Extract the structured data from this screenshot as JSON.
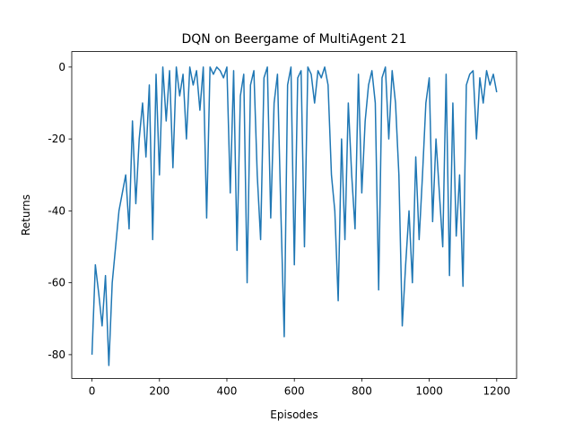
{
  "chart_data": {
    "type": "line",
    "title": "DQN on Beergame of MultiAgent 21",
    "x_label": "Episodes",
    "y_label": "Returns",
    "x": [
      0,
      10,
      20,
      30,
      40,
      50,
      60,
      70,
      80,
      90,
      100,
      110,
      120,
      130,
      140,
      150,
      160,
      170,
      180,
      190,
      200,
      210,
      220,
      230,
      240,
      250,
      260,
      270,
      280,
      290,
      300,
      310,
      320,
      330,
      340,
      350,
      360,
      370,
      380,
      390,
      400,
      410,
      420,
      430,
      440,
      450,
      460,
      470,
      480,
      490,
      500,
      510,
      520,
      530,
      540,
      550,
      560,
      570,
      580,
      590,
      600,
      610,
      620,
      630,
      640,
      650,
      660,
      670,
      680,
      690,
      700,
      710,
      720,
      730,
      740,
      750,
      760,
      770,
      780,
      790,
      800,
      810,
      820,
      830,
      840,
      850,
      860,
      870,
      880,
      890,
      900,
      910,
      920,
      930,
      940,
      950,
      960,
      970,
      980,
      990,
      1000,
      1010,
      1020,
      1030,
      1040,
      1050,
      1060,
      1070,
      1080,
      1090,
      1100,
      1110,
      1120,
      1130,
      1140,
      1150,
      1160,
      1170,
      1180,
      1190,
      1200
    ],
    "series": [
      {
        "name": "DQN",
        "color": "#1f77b4",
        "values": [
          -80,
          -55,
          -63,
          -72,
          -58,
          -83,
          -60,
          -50,
          -40,
          -35,
          -30,
          -45,
          -15,
          -38,
          -20,
          -10,
          -25,
          -5,
          -48,
          -2,
          -30,
          0,
          -15,
          -1,
          -28,
          0,
          -8,
          -2,
          -20,
          0,
          -5,
          -1,
          -12,
          0,
          -42,
          0,
          -2,
          0,
          -1,
          -3,
          0,
          -35,
          -1,
          -51,
          -8,
          -2,
          -60,
          -5,
          -1,
          -30,
          -48,
          -3,
          0,
          -42,
          -10,
          -2,
          -40,
          -75,
          -5,
          0,
          -55,
          -3,
          -1,
          -50,
          0,
          -2,
          -10,
          -1,
          -3,
          0,
          -5,
          -30,
          -40,
          -65,
          -20,
          -48,
          -10,
          -30,
          -45,
          -2,
          -35,
          -15,
          -5,
          -1,
          -10,
          -62,
          -3,
          0,
          -20,
          -1,
          -10,
          -30,
          -72,
          -55,
          -40,
          -60,
          -25,
          -48,
          -30,
          -10,
          -3,
          -43,
          -20,
          -35,
          -50,
          -2,
          -58,
          -10,
          -47,
          -30,
          -61,
          -5,
          -2,
          -1,
          -20,
          -3,
          -10,
          -1,
          -5,
          -2,
          -7
        ]
      }
    ],
    "xlim": [
      -60,
      1259
    ],
    "ylim": [
      -86.6,
      4.3
    ],
    "xticks": [
      0,
      200,
      400,
      600,
      800,
      1000,
      1200
    ],
    "yticks": [
      -80,
      -60,
      -40,
      -20,
      0
    ],
    "grid": false
  }
}
